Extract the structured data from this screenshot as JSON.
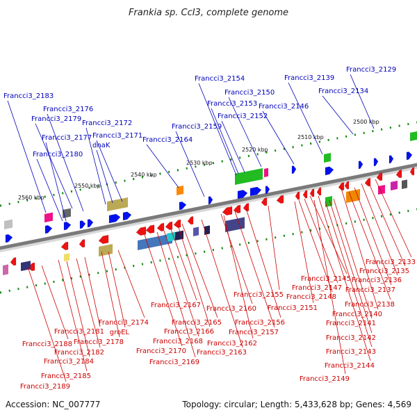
{
  "title": "Frankia sp. CcI3, complete genome",
  "footer": {
    "accession": "Accession: NC_007777",
    "summary": "Topology: circular; Length: 5,433,628 bp; Genes: 4,569"
  },
  "colors": {
    "forward_label": "#0000bb",
    "reverse_label": "#cc0000",
    "forward_arrow": "#0011ee",
    "reverse_arrow": "#ee1111",
    "backbone": "#7a7a7a",
    "tick": "#118811"
  },
  "kbp_ticks": [
    "2500 kbp",
    "2510 kbp",
    "2520 kbp",
    "2530 kbp",
    "2540 kbp",
    "2550 kbp",
    "2560 kbp"
  ],
  "forward_labels": [
    "Francci3_2129",
    "Francci3_2134",
    "Francci3_2139",
    "Francci3_2146",
    "Francci3_2150",
    "Francci3_2152",
    "Francci3_2153",
    "Francci3_2154",
    "Francci3_2159",
    "Francci3_2164",
    "Francci3_2171",
    "dnaK",
    "Francci3_2172",
    "Francci3_2176",
    "Francci3_2177",
    "Francci3_2179",
    "Francci3_2180",
    "Francci3_2183"
  ],
  "reverse_labels": [
    "Francci3_2133",
    "Francci3_2135",
    "Francci3_2136",
    "Francci3_2137",
    "Francci3_2138",
    "Francci3_2140",
    "Francci3_2141",
    "Francci3_2142",
    "Francci3_2143",
    "Francci3_2144",
    "Francci3_2145",
    "Francci3_2147",
    "Francci3_2148",
    "Francci3_2149",
    "Francci3_2151",
    "Francci3_2155",
    "Francci3_2156",
    "Francci3_2157",
    "Francci3_2160",
    "Francci3_2162",
    "Francci3_2163",
    "Francci3_2165",
    "Francci3_2166",
    "Francci3_2167",
    "Francci3_2168",
    "Francci3_2169",
    "Francci3_2170",
    "Francci3_2174",
    "groEL",
    "Francci3_2178",
    "Francci3_2181",
    "Francci3_2182",
    "Francci3_2184",
    "Francci3_2185",
    "Francci3_2188",
    "Francci3_2189"
  ]
}
